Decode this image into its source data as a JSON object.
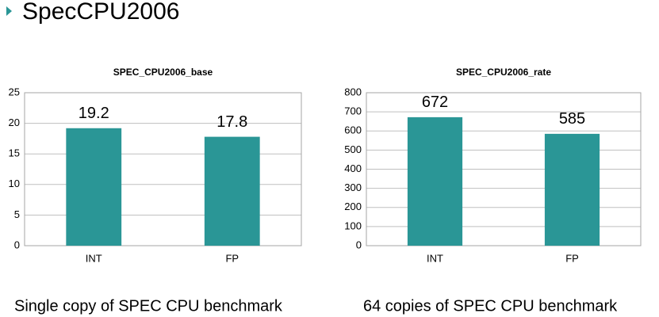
{
  "title": "SpecCPU2006",
  "chart_data": [
    {
      "type": "bar",
      "title": "SPEC_CPU2006_base",
      "categories": [
        "INT",
        "FP"
      ],
      "values": [
        19.2,
        17.8
      ],
      "color": "#2a9696",
      "ylim": [
        0,
        25
      ],
      "yticks": [
        0,
        5,
        10,
        15,
        20,
        25
      ],
      "grid": true,
      "caption": "Single copy of SPEC CPU benchmark"
    },
    {
      "type": "bar",
      "title": "SPEC_CPU2006_rate",
      "categories": [
        "INT",
        "FP"
      ],
      "values": [
        672,
        585
      ],
      "color": "#2a9696",
      "ylim": [
        0,
        800
      ],
      "yticks": [
        0,
        100,
        200,
        300,
        400,
        500,
        600,
        700,
        800
      ],
      "grid": true,
      "caption": "64 copies of SPEC CPU benchmark"
    }
  ]
}
